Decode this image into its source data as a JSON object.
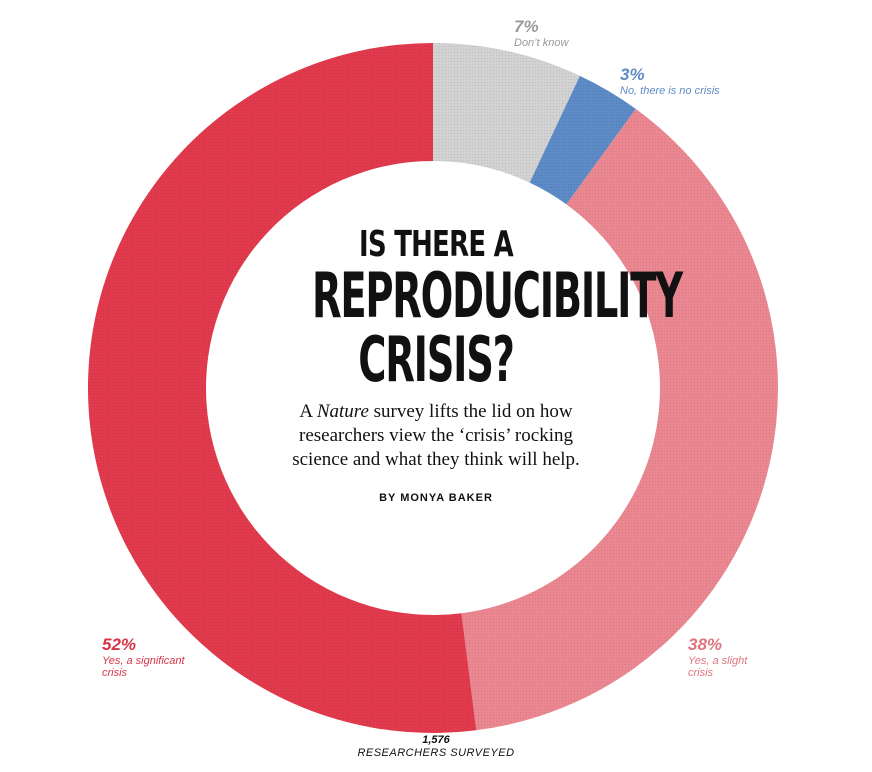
{
  "chart_data": {
    "type": "pie",
    "slices": [
      {
        "label": "Yes, a significant crisis",
        "value": 52,
        "display": "52%",
        "color": "#e03a4c"
      },
      {
        "label": "Yes, a slight crisis",
        "value": 38,
        "display": "38%",
        "color": "#ea8791"
      },
      {
        "label": "No, there is no crisis",
        "value": 3,
        "display": "3%",
        "color": "#5d8bc6"
      },
      {
        "label": "Don’t know",
        "value": 7,
        "display": "7%",
        "color": "#d2d2d2"
      }
    ],
    "donut": true,
    "title_line1": "IS THERE A",
    "title_line2": "REPRODUCIBILITY",
    "title_line3": "CRISIS?",
    "subtitle_pre": "A ",
    "subtitle_italic": "Nature",
    "subtitle_post": " survey lifts the lid on how researchers view the ‘crisis’ rocking science and what they think will help.",
    "byline": "BY MONYA BAKER",
    "respondents_count": "1,576",
    "respondents_label": "RESEARCHERS SURVEYED"
  }
}
